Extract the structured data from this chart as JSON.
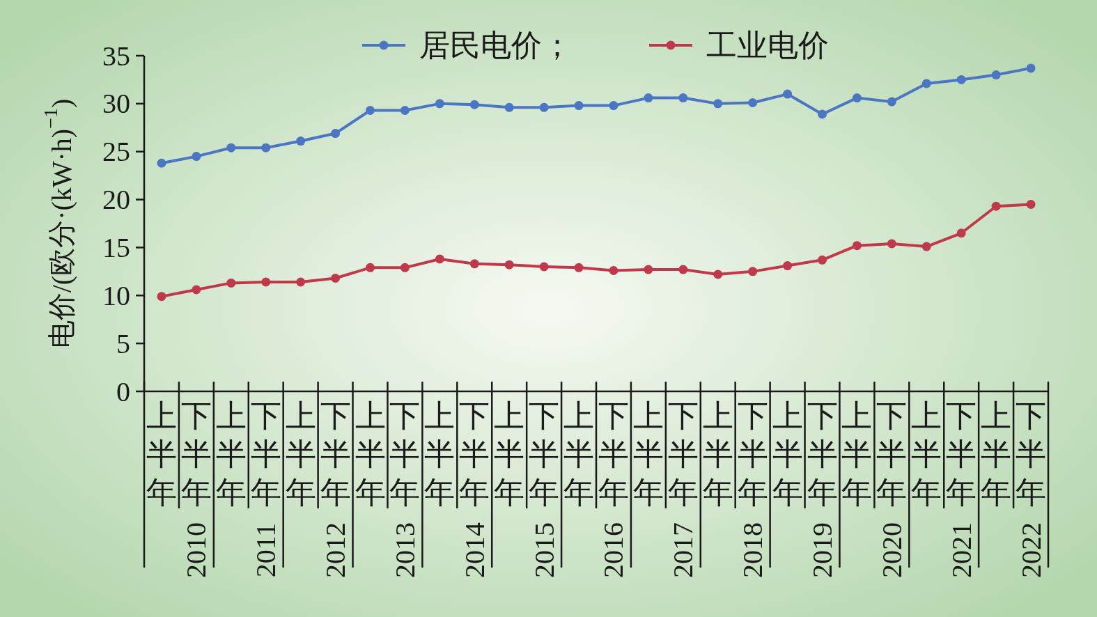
{
  "chart_data": {
    "type": "line",
    "ylabel": "电价/(欧分·(kW·h)$^{−1}$)",
    "categories": [
      "上半年",
      "下半年",
      "上半年",
      "下半年",
      "上半年",
      "下半年",
      "上半年",
      "下半年",
      "上半年",
      "下半年",
      "上半年",
      "下半年",
      "上半年",
      "下半年",
      "上半年",
      "下半年",
      "上半年",
      "下半年",
      "上半年",
      "下半年",
      "上半年",
      "下半年",
      "上半年",
      "下半年",
      "上半年",
      "下半年"
    ],
    "annotations": [
      "2010",
      "2011",
      "2012",
      "2013",
      "2014",
      "2015",
      "2016",
      "2017",
      "2018",
      "2019",
      "2020",
      "2021",
      "2022"
    ],
    "series": [
      {
        "name": "居民电价；",
        "color": "#4a76c4",
        "values": [
          23.8,
          24.5,
          25.4,
          25.4,
          26.1,
          26.9,
          29.3,
          29.3,
          30.0,
          29.9,
          29.6,
          29.6,
          29.8,
          29.8,
          30.6,
          30.6,
          30.0,
          30.1,
          31.0,
          28.9,
          30.6,
          30.2,
          32.1,
          32.5,
          33.0,
          33.7
        ]
      },
      {
        "name": "工业电价",
        "color": "#c0394b",
        "values": [
          9.9,
          10.6,
          11.3,
          11.4,
          11.4,
          11.8,
          12.9,
          12.9,
          13.8,
          13.3,
          13.2,
          13.0,
          12.9,
          12.6,
          12.7,
          12.7,
          12.2,
          12.5,
          13.1,
          13.7,
          15.2,
          15.4,
          15.1,
          16.5,
          19.3,
          19.5
        ]
      }
    ],
    "ylim": [
      0,
      35
    ],
    "yticks": [
      0,
      5,
      10,
      15,
      20,
      25,
      30,
      35
    ],
    "legend": "top",
    "marker": "circle",
    "line_style": "solid",
    "grid": false
  }
}
